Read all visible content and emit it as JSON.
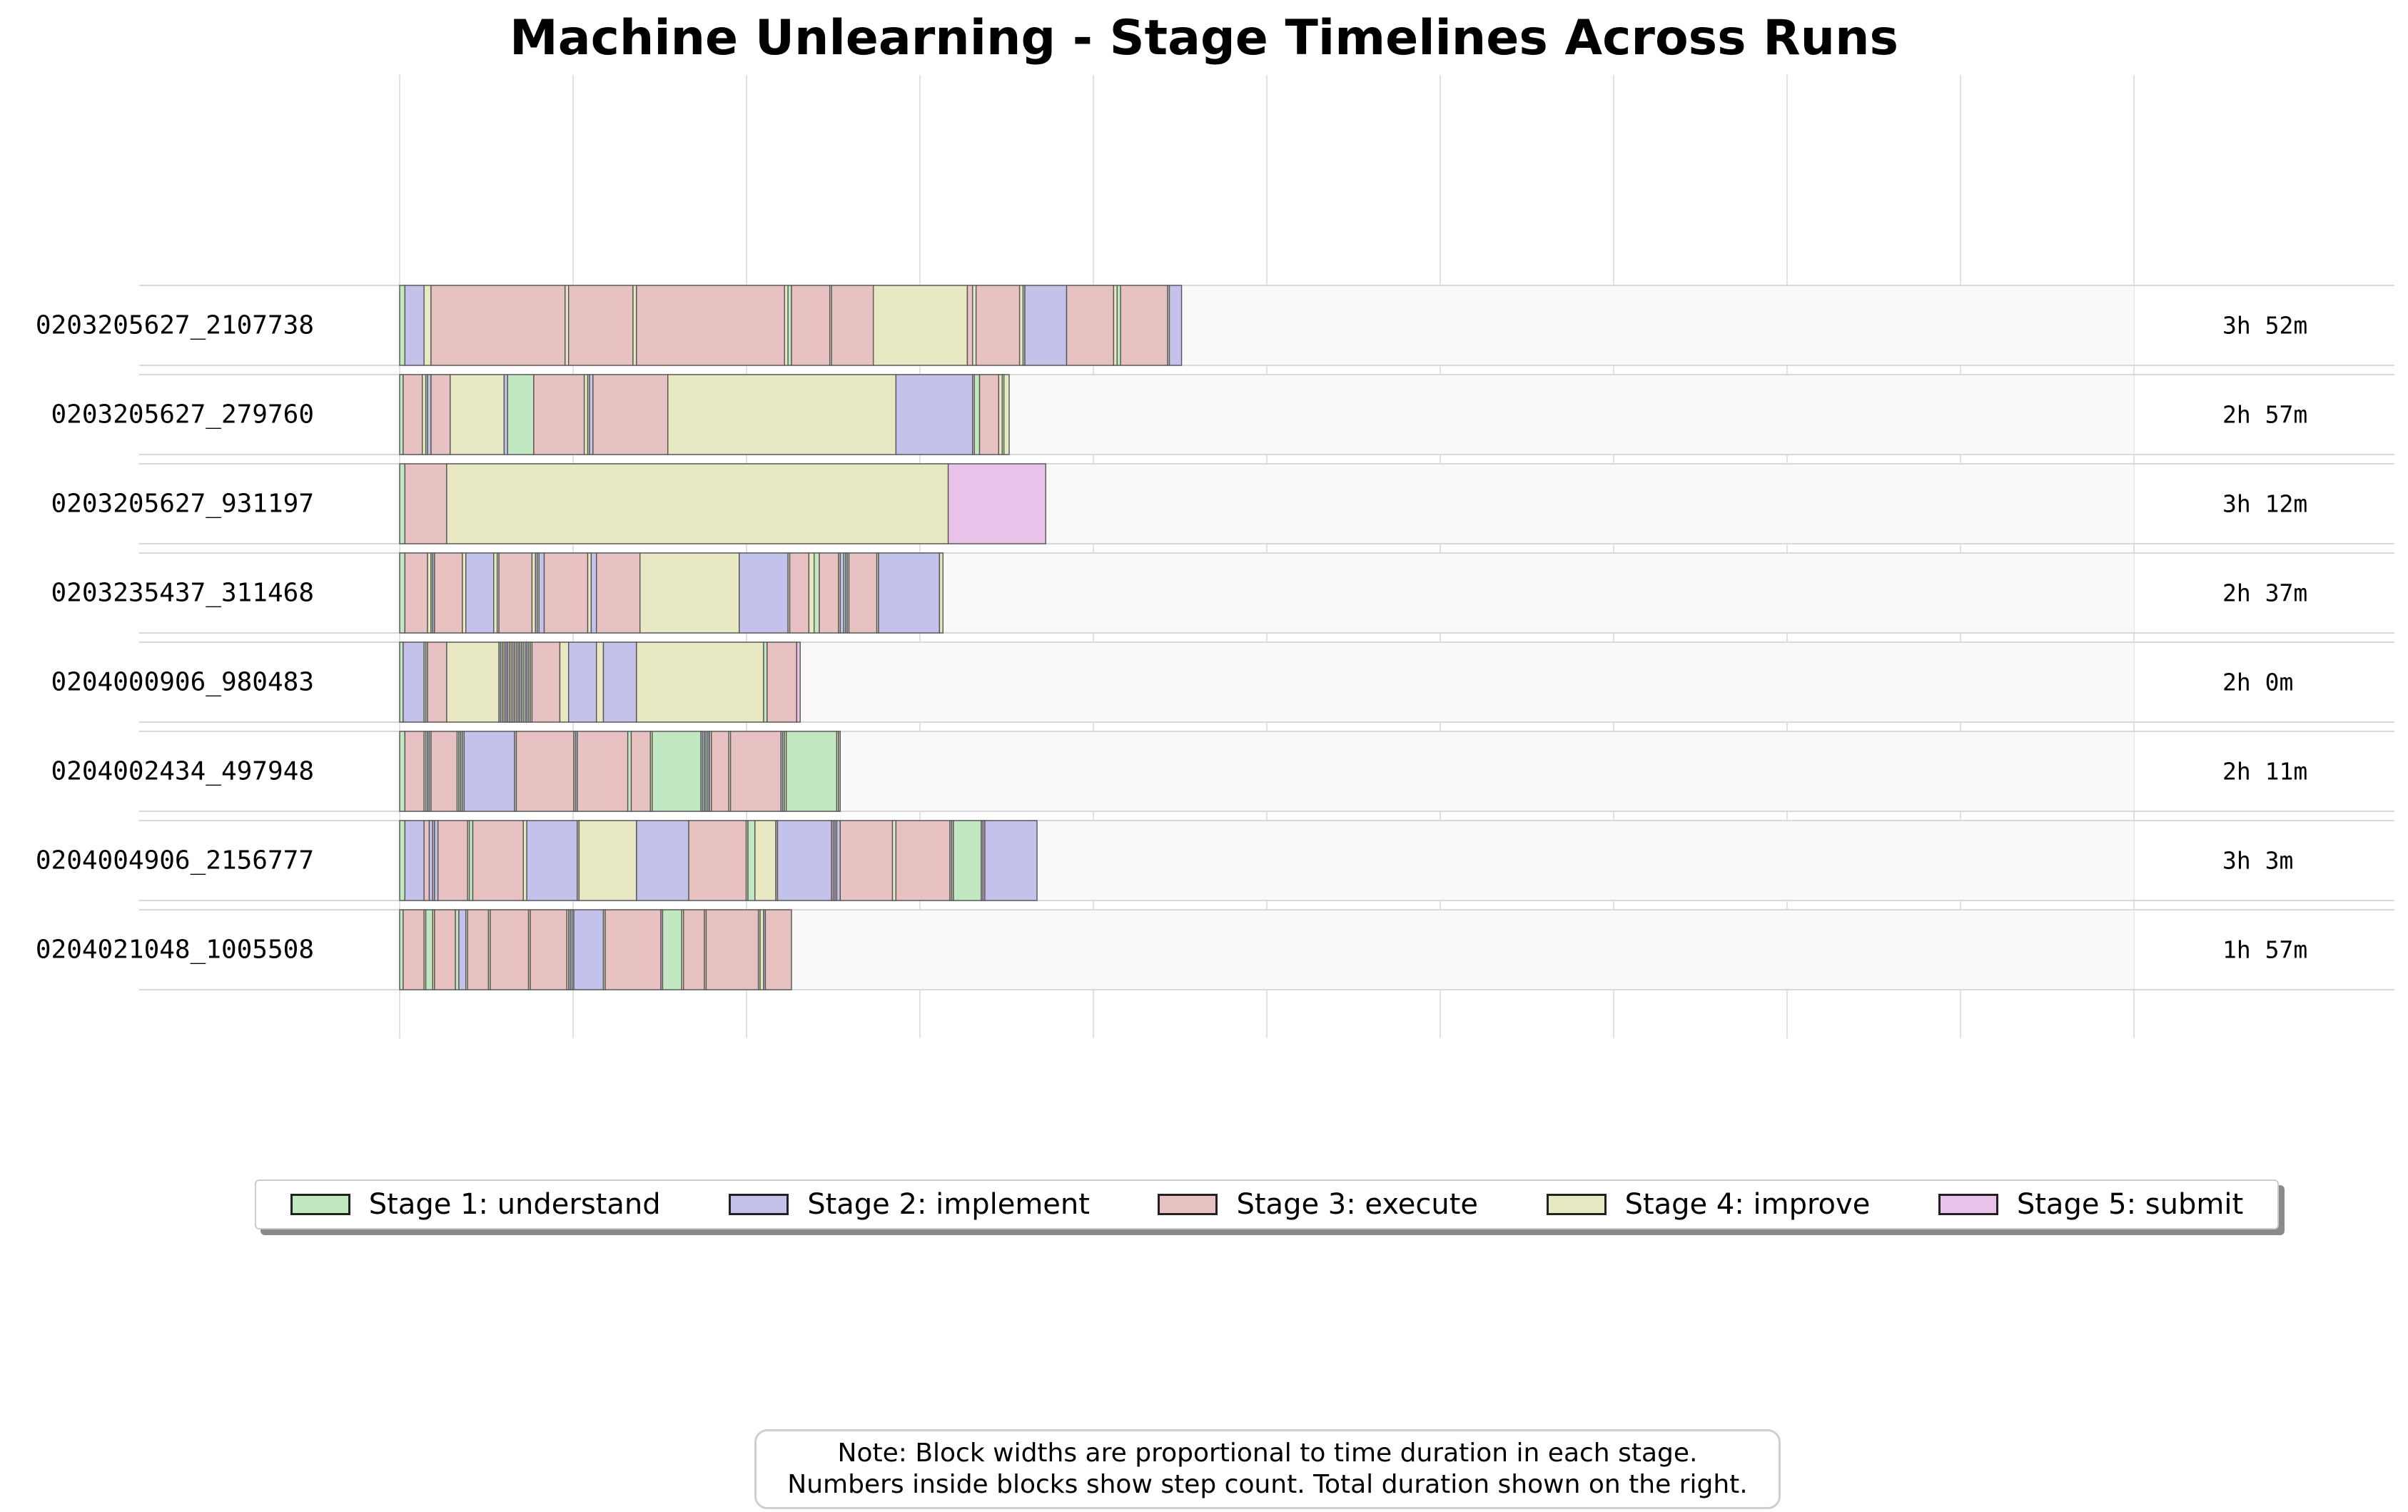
{
  "chart_data": {
    "type": "timeline",
    "title": "Machine Unlearning - Stage Timelines Across Runs",
    "stages": [
      {
        "id": 1,
        "name": "Stage 1: understand",
        "color": "#c2e8c2"
      },
      {
        "id": 2,
        "name": "Stage 2: implement",
        "color": "#c2c2eb"
      },
      {
        "id": 3,
        "name": "Stage 3: execute",
        "color": "#e8c2c2"
      },
      {
        "id": 4,
        "name": "Stage 4: improve",
        "color": "#e8e8c2"
      },
      {
        "id": 5,
        "name": "Stage 5: submit",
        "color": "#e8c2e8"
      }
    ],
    "grid": true,
    "legend_position": "bottom-center",
    "runs": [
      {
        "id": "0203205627_2107738",
        "duration": "3h 52m",
        "segments": [
          [
            1,
            3
          ],
          [
            2,
            11
          ],
          [
            4,
            4
          ],
          [
            3,
            77
          ],
          [
            4,
            2
          ],
          [
            3,
            37
          ],
          [
            4,
            2
          ],
          [
            3,
            85
          ],
          [
            4,
            2
          ],
          [
            1,
            2
          ],
          [
            3,
            22
          ],
          [
            4,
            1
          ],
          [
            3,
            24
          ],
          [
            4,
            54
          ],
          [
            3,
            3
          ],
          [
            4,
            2
          ],
          [
            3,
            25
          ],
          [
            4,
            2
          ],
          [
            1,
            1
          ],
          [
            2,
            24
          ],
          [
            3,
            27
          ],
          [
            4,
            2
          ],
          [
            1,
            2
          ],
          [
            3,
            27
          ],
          [
            4,
            1
          ],
          [
            2,
            7
          ]
        ]
      },
      {
        "id": "0203205627_279760",
        "duration": "2h 57m",
        "segments": [
          [
            1,
            2
          ],
          [
            3,
            11
          ],
          [
            4,
            2
          ],
          [
            1,
            1
          ],
          [
            2,
            2
          ],
          [
            3,
            11
          ],
          [
            4,
            31
          ],
          [
            2,
            2
          ],
          [
            1,
            15
          ],
          [
            3,
            29
          ],
          [
            4,
            2
          ],
          [
            1,
            1
          ],
          [
            2,
            2
          ],
          [
            3,
            43
          ],
          [
            4,
            131
          ],
          [
            2,
            44
          ],
          [
            3,
            1
          ],
          [
            1,
            3
          ],
          [
            3,
            11
          ],
          [
            4,
            2
          ],
          [
            1,
            1
          ],
          [
            4,
            3
          ]
        ]
      },
      {
        "id": "0203205627_931197",
        "duration": "3h 12m",
        "segments": [
          [
            1,
            3
          ],
          [
            3,
            24
          ],
          [
            4,
            288
          ],
          [
            5,
            56
          ]
        ]
      },
      {
        "id": "0203235437_311468",
        "duration": "2h 37m",
        "segments": [
          [
            1,
            3
          ],
          [
            3,
            13
          ],
          [
            4,
            2
          ],
          [
            1,
            1
          ],
          [
            2,
            1
          ],
          [
            3,
            16
          ],
          [
            4,
            2
          ],
          [
            2,
            16
          ],
          [
            4,
            2
          ],
          [
            1,
            1
          ],
          [
            3,
            19
          ],
          [
            4,
            2
          ],
          [
            2,
            1
          ],
          [
            1,
            1
          ],
          [
            2,
            3
          ],
          [
            3,
            25
          ],
          [
            4,
            2
          ],
          [
            2,
            3
          ],
          [
            3,
            25
          ],
          [
            4,
            57
          ],
          [
            2,
            28
          ],
          [
            4,
            1
          ],
          [
            3,
            11
          ],
          [
            4,
            3
          ],
          [
            1,
            3
          ],
          [
            3,
            11
          ],
          [
            4,
            1
          ],
          [
            2,
            2
          ],
          [
            1,
            1
          ],
          [
            2,
            1
          ],
          [
            1,
            1
          ],
          [
            3,
            16
          ],
          [
            4,
            1
          ],
          [
            2,
            35
          ],
          [
            4,
            2
          ]
        ]
      },
      {
        "id": "0204000906_980483",
        "duration": "2h 0m",
        "segments": [
          [
            1,
            2
          ],
          [
            2,
            12
          ],
          [
            4,
            1
          ],
          [
            1,
            1
          ],
          [
            3,
            11
          ],
          [
            4,
            30
          ],
          [
            2,
            1
          ],
          [
            1,
            1
          ],
          [
            4,
            1
          ],
          [
            3,
            1
          ],
          [
            2,
            1
          ],
          [
            3,
            1
          ],
          [
            4,
            1
          ],
          [
            1,
            1
          ],
          [
            3,
            1
          ],
          [
            4,
            1
          ],
          [
            1,
            1
          ],
          [
            3,
            1
          ],
          [
            2,
            1
          ],
          [
            1,
            1
          ],
          [
            4,
            1
          ],
          [
            2,
            1
          ],
          [
            3,
            1
          ],
          [
            1,
            1
          ],
          [
            4,
            1
          ],
          [
            3,
            16
          ],
          [
            4,
            5
          ],
          [
            2,
            16
          ],
          [
            4,
            4
          ],
          [
            2,
            19
          ],
          [
            4,
            73
          ],
          [
            1,
            2
          ],
          [
            3,
            17
          ],
          [
            5,
            2
          ]
        ]
      },
      {
        "id": "0204002434_497948",
        "duration": "2h 11m",
        "segments": [
          [
            1,
            3
          ],
          [
            3,
            11
          ],
          [
            4,
            1
          ],
          [
            1,
            1
          ],
          [
            2,
            1
          ],
          [
            1,
            1
          ],
          [
            3,
            15
          ],
          [
            4,
            1
          ],
          [
            1,
            1
          ],
          [
            2,
            1
          ],
          [
            4,
            1
          ],
          [
            2,
            29
          ],
          [
            4,
            1
          ],
          [
            3,
            33
          ],
          [
            4,
            1
          ],
          [
            2,
            1
          ],
          [
            3,
            29
          ],
          [
            1,
            2
          ],
          [
            3,
            11
          ],
          [
            4,
            1
          ],
          [
            1,
            28
          ],
          [
            2,
            1
          ],
          [
            1,
            1
          ],
          [
            2,
            1
          ],
          [
            1,
            1
          ],
          [
            2,
            1
          ],
          [
            4,
            1
          ],
          [
            3,
            10
          ],
          [
            4,
            1
          ],
          [
            3,
            29
          ],
          [
            2,
            1
          ],
          [
            1,
            1
          ],
          [
            4,
            1
          ],
          [
            1,
            29
          ],
          [
            4,
            1
          ],
          [
            1,
            1
          ]
        ]
      },
      {
        "id": "0204004906_2156777",
        "duration": "3h 3m",
        "segments": [
          [
            1,
            3
          ],
          [
            2,
            11
          ],
          [
            3,
            3
          ],
          [
            2,
            2
          ],
          [
            3,
            1
          ],
          [
            2,
            2
          ],
          [
            3,
            17
          ],
          [
            4,
            1
          ],
          [
            1,
            2
          ],
          [
            3,
            29
          ],
          [
            4,
            2
          ],
          [
            2,
            29
          ],
          [
            4,
            1
          ],
          [
            4,
            33
          ],
          [
            2,
            30
          ],
          [
            3,
            33
          ],
          [
            4,
            1
          ],
          [
            1,
            4
          ],
          [
            4,
            12
          ],
          [
            3,
            1
          ],
          [
            2,
            31
          ],
          [
            3,
            1
          ],
          [
            2,
            1
          ],
          [
            3,
            1
          ],
          [
            2,
            2
          ],
          [
            3,
            30
          ],
          [
            4,
            2
          ],
          [
            3,
            31
          ],
          [
            1,
            1
          ],
          [
            3,
            1
          ],
          [
            1,
            16
          ],
          [
            2,
            1
          ],
          [
            3,
            1
          ],
          [
            2,
            30
          ]
        ]
      },
      {
        "id": "0204021048_1005508",
        "duration": "1h 57m",
        "segments": [
          [
            1,
            2
          ],
          [
            3,
            12
          ],
          [
            4,
            1
          ],
          [
            1,
            4
          ],
          [
            4,
            1
          ],
          [
            3,
            12
          ],
          [
            1,
            2
          ],
          [
            2,
            4
          ],
          [
            4,
            1
          ],
          [
            3,
            12
          ],
          [
            4,
            1
          ],
          [
            3,
            22
          ],
          [
            4,
            1
          ],
          [
            3,
            21
          ],
          [
            4,
            1
          ],
          [
            2,
            1
          ],
          [
            1,
            1
          ],
          [
            2,
            1
          ],
          [
            2,
            17
          ],
          [
            4,
            1
          ],
          [
            3,
            32
          ],
          [
            5,
            1
          ],
          [
            1,
            11
          ],
          [
            4,
            1
          ],
          [
            3,
            12
          ],
          [
            4,
            1
          ],
          [
            3,
            30
          ],
          [
            1,
            1
          ],
          [
            4,
            2
          ],
          [
            2,
            1
          ],
          [
            3,
            15
          ]
        ]
      }
    ]
  },
  "legend": {
    "items": [
      "Stage 1: understand",
      "Stage 2: implement",
      "Stage 3: execute",
      "Stage 4: improve",
      "Stage 5: submit"
    ]
  },
  "note": {
    "line1": "Note: Block widths are proportional to time duration in each stage.",
    "line2": "Numbers inside blocks show step count. Total duration shown on the right."
  }
}
